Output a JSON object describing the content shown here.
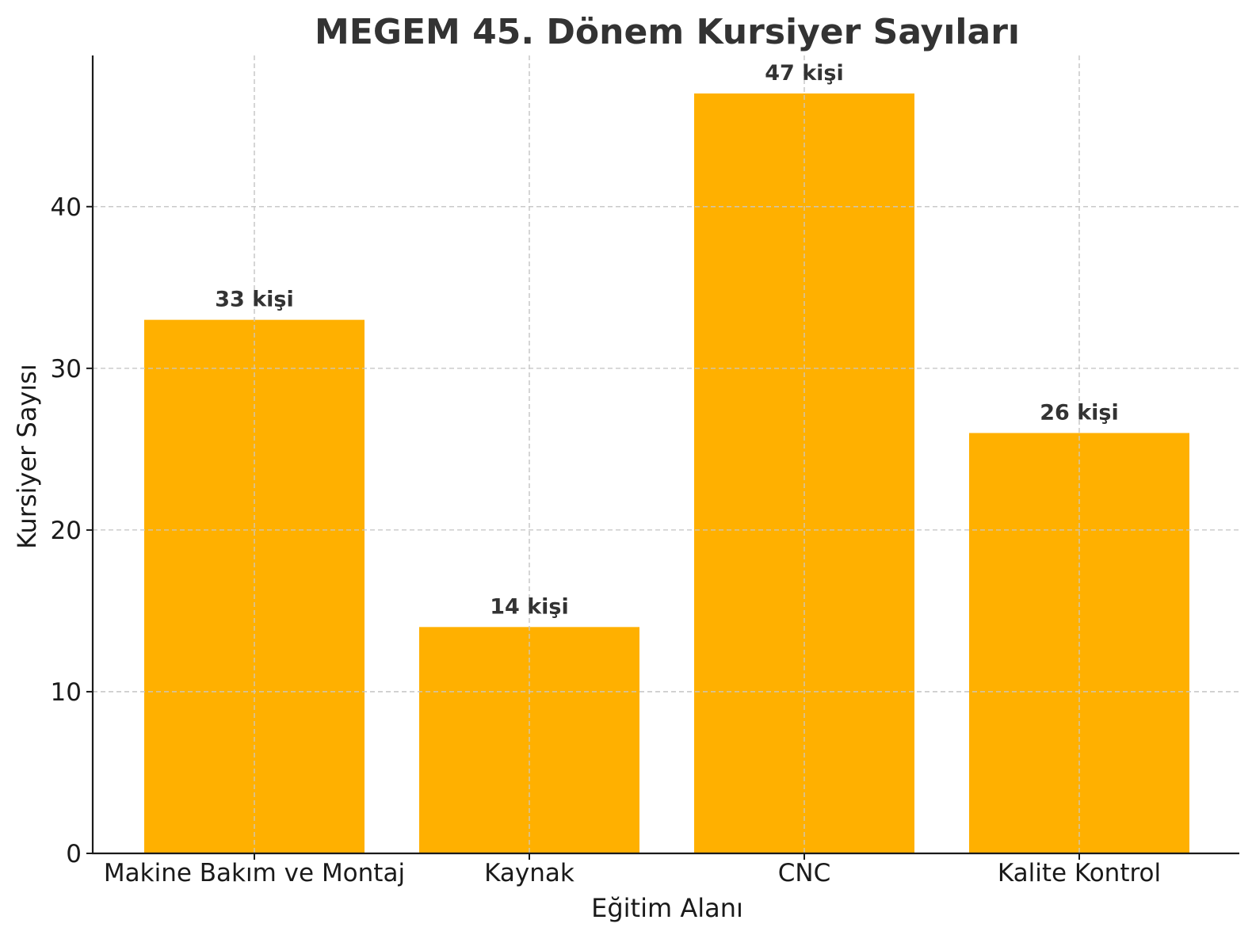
{
  "chart_data": {
    "type": "bar",
    "title": "MEGEM 45. Dönem Kursiyer Sayıları",
    "xlabel": "Eğitim Alanı",
    "ylabel": "Kursiyer Sayısı",
    "categories": [
      "Makine Bakım ve Montaj",
      "Kaynak",
      "CNC",
      "Kalite Kontrol"
    ],
    "values": [
      33,
      14,
      47,
      26
    ],
    "data_labels": [
      "33 kişi",
      "14 kişi",
      "47 kişi",
      "26 kişi"
    ],
    "yticks": [
      0,
      10,
      20,
      30,
      40
    ],
    "ylim": [
      0,
      49.35
    ],
    "grid": true,
    "bar_color": "#FFB000"
  }
}
